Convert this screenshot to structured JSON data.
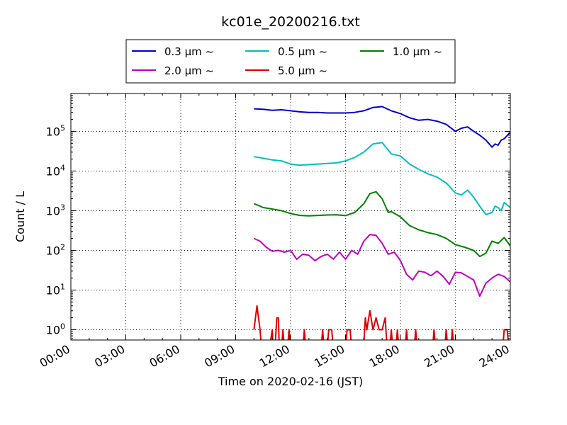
{
  "chart_data": {
    "type": "line",
    "title": "kc01e_20200216.txt",
    "xlabel": "Time on 2020-02-16 (JST)",
    "ylabel": "Count / L",
    "y_scale": "log",
    "ylim": [
      0.55,
      900000
    ],
    "xlim": [
      "00:00",
      "24:00"
    ],
    "x_ticks": [
      "00:00",
      "03:00",
      "06:00",
      "09:00",
      "12:00",
      "15:00",
      "18:00",
      "21:00",
      "24:00"
    ],
    "y_ticks": [
      {
        "value": 1,
        "base": "10",
        "exp": "0"
      },
      {
        "value": 10,
        "base": "10",
        "exp": "1"
      },
      {
        "value": 100,
        "base": "10",
        "exp": "2"
      },
      {
        "value": 1000,
        "base": "10",
        "exp": "3"
      },
      {
        "value": 10000,
        "base": "10",
        "exp": "4"
      },
      {
        "value": 100000,
        "base": "10",
        "exp": "5"
      }
    ],
    "grid": true,
    "legend_position": "top-center",
    "series": [
      {
        "name": "0.3 µm ~",
        "color": "#0000cc",
        "x": [
          "10:00",
          "10:30",
          "11:00",
          "11:30",
          "12:00",
          "12:30",
          "13:00",
          "13:30",
          "14:00",
          "14:30",
          "15:00",
          "15:30",
          "16:00",
          "16:30",
          "17:00",
          "17:30",
          "18:00",
          "18:30",
          "19:00",
          "19:30",
          "20:00",
          "20:30",
          "21:00",
          "21:20",
          "21:40",
          "22:00",
          "22:20",
          "22:40",
          "23:00",
          "23:10",
          "23:20",
          "23:30",
          "23:40",
          "24:00"
        ],
        "y": [
          370000,
          360000,
          340000,
          350000,
          330000,
          310000,
          300000,
          300000,
          290000,
          290000,
          290000,
          300000,
          330000,
          400000,
          420000,
          330000,
          280000,
          220000,
          190000,
          200000,
          180000,
          150000,
          100000,
          120000,
          130000,
          100000,
          80000,
          60000,
          40000,
          48000,
          45000,
          60000,
          65000,
          95000
        ]
      },
      {
        "name": "0.5 µm ~",
        "color": "#00bfbf",
        "x": [
          "10:00",
          "10:30",
          "11:00",
          "11:30",
          "12:00",
          "12:30",
          "13:00",
          "13:30",
          "14:00",
          "14:30",
          "15:00",
          "15:30",
          "16:00",
          "16:30",
          "17:00",
          "17:30",
          "18:00",
          "18:30",
          "19:00",
          "19:30",
          "20:00",
          "20:30",
          "21:00",
          "21:20",
          "21:40",
          "22:00",
          "22:20",
          "22:40",
          "23:00",
          "23:10",
          "23:20",
          "23:30",
          "23:40",
          "24:00"
        ],
        "y": [
          23000,
          21000,
          19000,
          18000,
          15000,
          14000,
          14500,
          15000,
          15500,
          16000,
          18000,
          22000,
          30000,
          48000,
          52000,
          27000,
          24000,
          15000,
          11000,
          8500,
          7000,
          5000,
          2800,
          2500,
          3300,
          2200,
          1300,
          800,
          900,
          1300,
          1200,
          1000,
          1600,
          1200
        ]
      },
      {
        "name": "1.0 µm ~",
        "color": "#008000",
        "x": [
          "10:00",
          "10:15",
          "10:30",
          "11:00",
          "11:30",
          "12:00",
          "12:30",
          "13:00",
          "13:30",
          "14:00",
          "14:30",
          "15:00",
          "15:30",
          "16:00",
          "16:20",
          "16:40",
          "17:00",
          "17:20",
          "17:30",
          "18:00",
          "18:30",
          "19:00",
          "19:30",
          "20:00",
          "20:30",
          "21:00",
          "21:30",
          "22:00",
          "22:20",
          "22:40",
          "23:00",
          "23:20",
          "23:40",
          "24:00"
        ],
        "y": [
          1500,
          1350,
          1200,
          1100,
          1000,
          850,
          760,
          740,
          760,
          780,
          790,
          750,
          900,
          1500,
          2700,
          3000,
          2000,
          900,
          950,
          700,
          420,
          330,
          280,
          250,
          200,
          140,
          120,
          100,
          70,
          85,
          170,
          150,
          210,
          130
        ]
      },
      {
        "name": "2.0 µm ~",
        "color": "#bf00bf",
        "x": [
          "10:00",
          "10:20",
          "10:40",
          "11:00",
          "11:20",
          "11:40",
          "12:00",
          "12:20",
          "12:40",
          "13:00",
          "13:20",
          "13:40",
          "14:00",
          "14:20",
          "14:40",
          "15:00",
          "15:20",
          "15:40",
          "16:00",
          "16:20",
          "16:40",
          "17:00",
          "17:20",
          "17:40",
          "18:00",
          "18:20",
          "18:40",
          "19:00",
          "19:20",
          "19:40",
          "20:00",
          "20:20",
          "20:40",
          "21:00",
          "21:20",
          "21:40",
          "22:00",
          "22:20",
          "22:40",
          "23:00",
          "23:20",
          "23:40",
          "24:00"
        ],
        "y": [
          200,
          170,
          120,
          95,
          100,
          90,
          100,
          60,
          80,
          75,
          55,
          70,
          80,
          60,
          90,
          60,
          100,
          80,
          170,
          250,
          240,
          150,
          80,
          90,
          55,
          25,
          18,
          30,
          28,
          23,
          30,
          22,
          14,
          28,
          27,
          22,
          18,
          7,
          15,
          20,
          25,
          22,
          16
        ]
      },
      {
        "name": "5.0 µm ~",
        "color": "#dd0000",
        "x": [
          "10:00",
          "10:10",
          "10:20",
          "10:30",
          "10:40",
          "11:00",
          "11:05",
          "11:15",
          "11:20",
          "11:25",
          "11:35",
          "11:45",
          "11:55",
          "12:05",
          "12:15",
          "12:25",
          "12:35",
          "12:45",
          "12:55",
          "13:05",
          "13:15",
          "13:25",
          "13:35",
          "13:45",
          "13:55",
          "14:05",
          "14:15",
          "14:25",
          "14:35",
          "14:45",
          "14:55",
          "15:05",
          "15:15",
          "15:25",
          "15:35",
          "15:45",
          "15:55",
          "16:05",
          "16:10",
          "16:20",
          "16:30",
          "16:40",
          "16:50",
          "17:00",
          "17:10",
          "17:20",
          "17:30",
          "17:40",
          "17:50",
          "18:00",
          "18:10",
          "18:20",
          "18:30",
          "18:40",
          "18:50",
          "19:00",
          "19:10",
          "19:20",
          "19:30",
          "19:40",
          "19:50",
          "20:00",
          "20:10",
          "20:20",
          "20:30",
          "20:40",
          "20:50",
          "21:00",
          "21:10",
          "21:20",
          "21:30",
          "21:40",
          "21:50",
          "22:00",
          "22:10",
          "22:20",
          "22:30",
          "22:40",
          "22:50",
          "23:00",
          "23:10",
          "23:20",
          "23:30",
          "23:40",
          "23:50",
          "24:00"
        ],
        "y": [
          1,
          4,
          1,
          0,
          0,
          1,
          0,
          2,
          2,
          0,
          1,
          0,
          1,
          0,
          0,
          0,
          0,
          1,
          0,
          0,
          0,
          0,
          0,
          1,
          0,
          1,
          1,
          0,
          0,
          0,
          0,
          1,
          1,
          0,
          0,
          0,
          0,
          2,
          1,
          3,
          1,
          2,
          1,
          1,
          2,
          0,
          1,
          0,
          1,
          0,
          0,
          1,
          0,
          0,
          1,
          0,
          0,
          0,
          0,
          0,
          1,
          0,
          0,
          0,
          1,
          0,
          1,
          0,
          0,
          0,
          0,
          0,
          0,
          0,
          0,
          0,
          0,
          0,
          0,
          0,
          0,
          0,
          0,
          1,
          1,
          0
        ]
      }
    ]
  }
}
